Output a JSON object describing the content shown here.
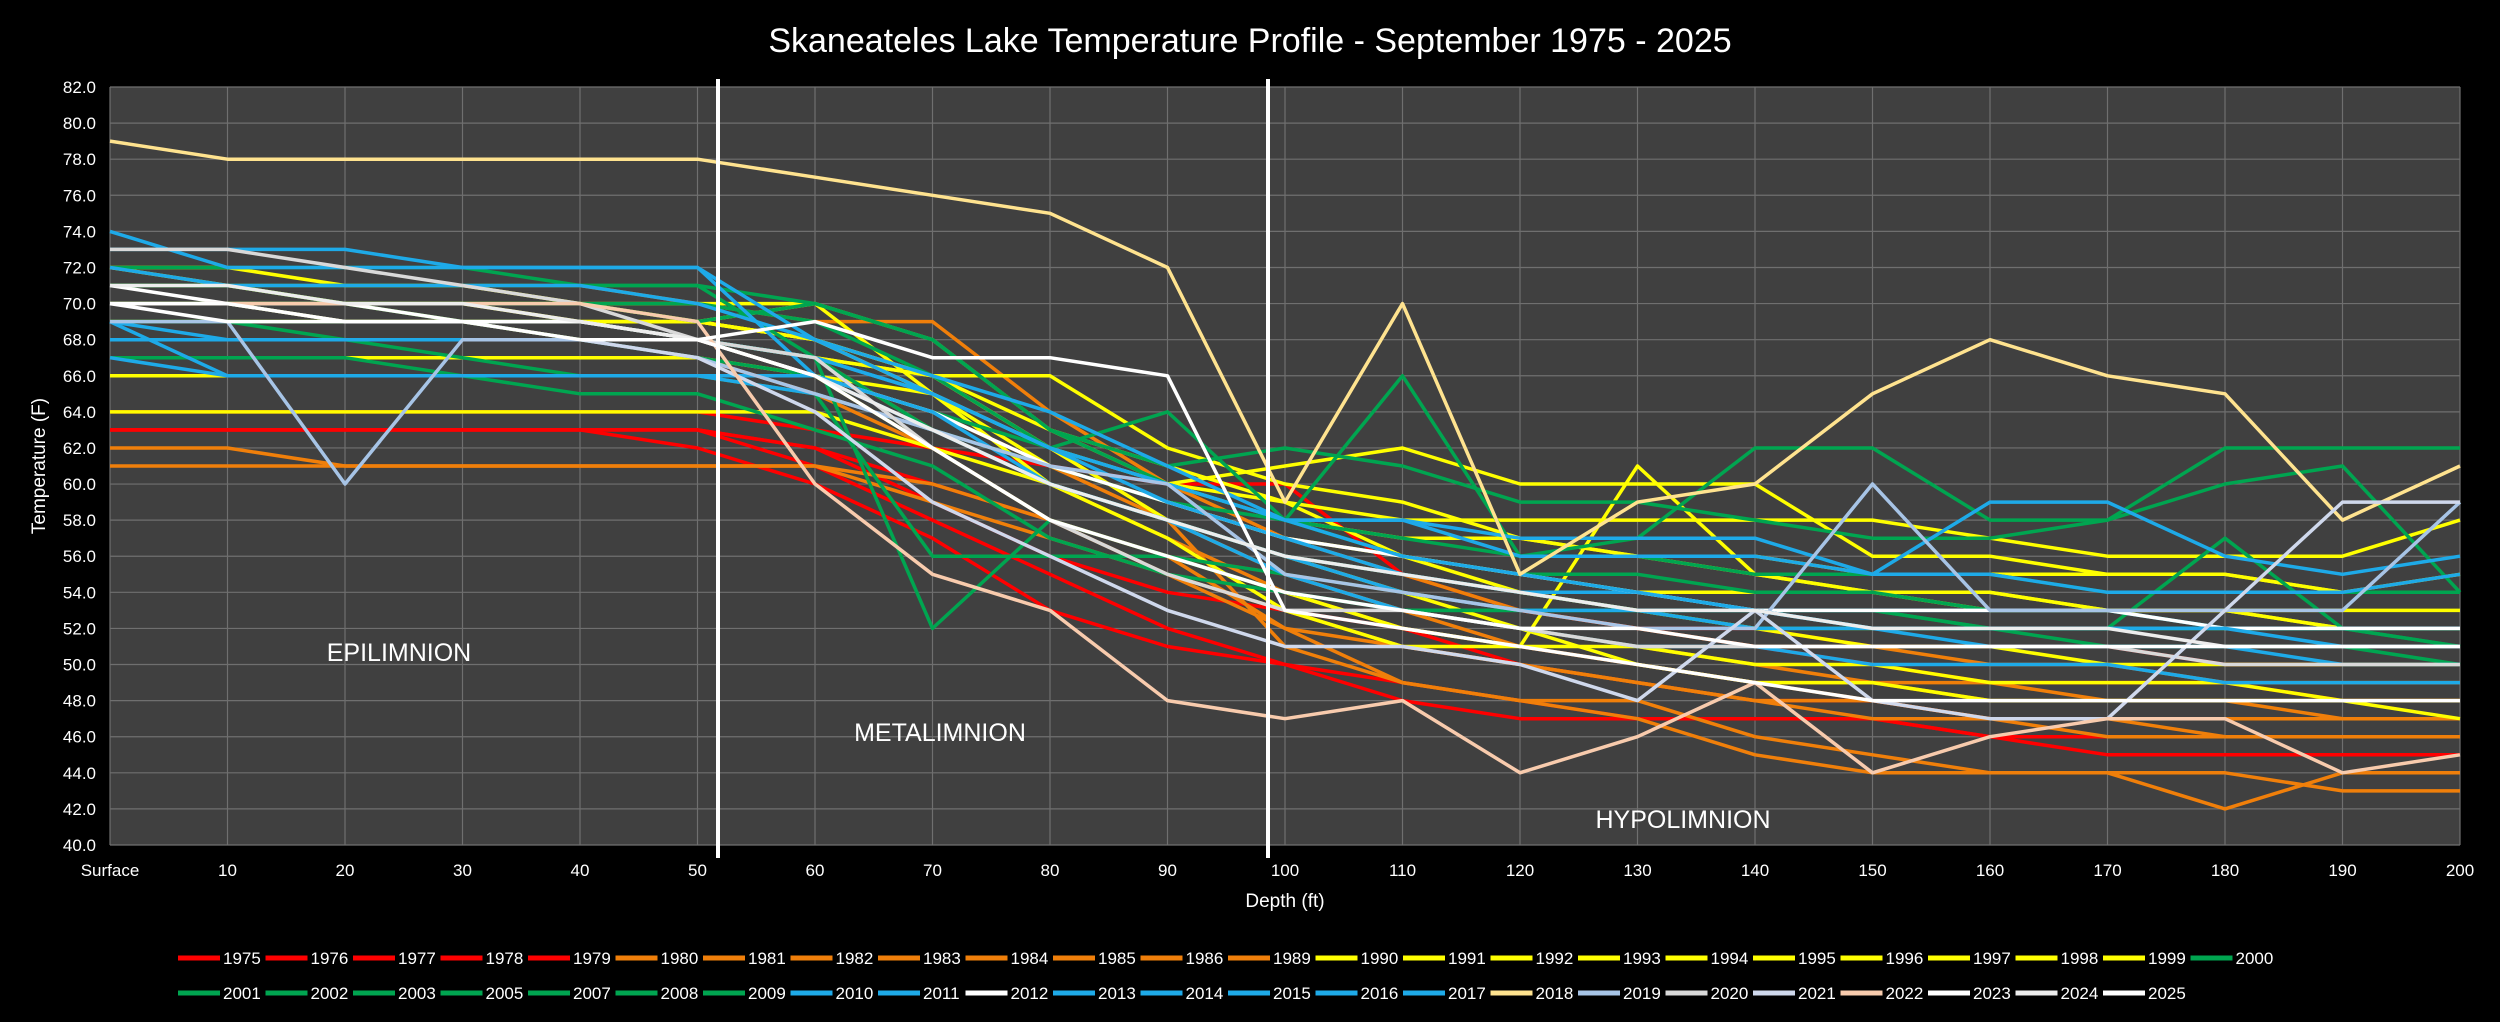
{
  "chart_data": {
    "type": "line",
    "title": "Skaneateles Lake Temperature Profile - September 1975 - 2025",
    "xlabel": "Depth (ft)",
    "ylabel": "Temperature (F)",
    "ylim": [
      40,
      82
    ],
    "x": [
      "Surface",
      "10",
      "20",
      "30",
      "40",
      "50",
      "60",
      "70",
      "80",
      "90",
      "100",
      "110",
      "120",
      "130",
      "140",
      "150",
      "160",
      "170",
      "180",
      "190",
      "200"
    ],
    "y_ticks": [
      "40.0",
      "42.0",
      "44.0",
      "46.0",
      "48.0",
      "50.0",
      "52.0",
      "54.0",
      "56.0",
      "58.0",
      "60.0",
      "62.0",
      "64.0",
      "66.0",
      "68.0",
      "70.0",
      "72.0",
      "74.0",
      "76.0",
      "78.0",
      "80.0",
      "82.0"
    ],
    "grid": true,
    "legend_position": "bottom",
    "zones": [
      {
        "label": "EPILIMNION"
      },
      {
        "label": "METALIMNION"
      },
      {
        "label": "HYPOLIMNION"
      }
    ],
    "series": [
      {
        "name": "1975",
        "color": "#ff0000",
        "values": [
          63,
          63,
          63,
          63,
          63,
          63,
          61,
          58,
          55,
          52,
          50,
          48,
          47,
          47,
          47,
          47,
          46,
          46,
          46,
          46,
          46
        ]
      },
      {
        "name": "1976",
        "color": "#ff0000",
        "values": [
          63,
          63,
          63,
          63,
          63,
          62,
          60,
          57,
          53,
          51,
          50,
          49,
          48,
          47,
          47,
          47,
          46,
          45,
          45,
          45,
          45
        ]
      },
      {
        "name": "1977",
        "color": "#ff0000",
        "values": [
          63,
          63,
          63,
          63,
          63,
          63,
          62,
          59,
          56,
          54,
          53,
          52,
          50,
          49,
          48,
          48,
          47,
          47,
          47,
          47,
          47
        ]
      },
      {
        "name": "1978",
        "color": "#ff0000",
        "values": [
          63,
          63,
          63,
          63,
          63,
          63,
          62,
          60,
          58,
          56,
          55,
          54,
          53,
          52,
          51,
          50,
          49,
          49,
          49,
          48,
          48
        ]
      },
      {
        "name": "1979",
        "color": "#ff0000",
        "values": [
          64,
          64,
          64,
          64,
          64,
          64,
          63,
          62,
          61,
          60,
          60,
          55,
          53,
          52,
          52,
          51,
          51,
          51,
          50,
          50,
          50
        ]
      },
      {
        "name": "1980",
        "color": "#f07f0a",
        "values": [
          62,
          62,
          61,
          61,
          61,
          61,
          61,
          60,
          58,
          56,
          52,
          49,
          48,
          48,
          46,
          45,
          44,
          44,
          44,
          43,
          43
        ]
      },
      {
        "name": "1981",
        "color": "#f07f0a",
        "values": [
          61,
          61,
          61,
          61,
          61,
          61,
          61,
          59,
          57,
          55,
          53,
          51,
          50,
          49,
          48,
          48,
          47,
          47,
          47,
          47,
          47
        ]
      },
      {
        "name": "1982",
        "color": "#f07f0a",
        "values": [
          66,
          66,
          66,
          66,
          66,
          66,
          65,
          63,
          60,
          57,
          54,
          52,
          51,
          50,
          49,
          48,
          47,
          47,
          46,
          46,
          46
        ]
      },
      {
        "name": "1983",
        "color": "#f07f0a",
        "values": [
          69,
          69,
          69,
          69,
          68,
          68,
          66,
          64,
          61,
          58,
          55,
          53,
          52,
          51,
          50,
          49,
          49,
          48,
          48,
          48,
          48
        ]
      },
      {
        "name": "1984",
        "color": "#f07f0a",
        "values": [
          67,
          67,
          67,
          67,
          67,
          67,
          65,
          62,
          58,
          55,
          52,
          51,
          50,
          49,
          48,
          47,
          47,
          46,
          46,
          46,
          46
        ]
      },
      {
        "name": "1985",
        "color": "#f07f0a",
        "values": [
          70,
          70,
          70,
          70,
          70,
          69,
          68,
          65,
          62,
          58,
          55,
          53,
          51,
          50,
          49,
          49,
          48,
          48,
          48,
          47,
          47
        ]
      },
      {
        "name": "1986",
        "color": "#f07f0a",
        "values": [
          71,
          71,
          71,
          71,
          71,
          70,
          69,
          69,
          64,
          60,
          57,
          55,
          53,
          52,
          51,
          51,
          50,
          50,
          49,
          49,
          49
        ]
      },
      {
        "name": "1989",
        "color": "#f07f0a",
        "values": [
          68,
          68,
          68,
          68,
          68,
          68,
          67,
          63,
          60,
          58,
          51,
          49,
          48,
          47,
          45,
          44,
          44,
          44,
          42,
          44,
          44
        ]
      },
      {
        "name": "1990",
        "color": "#ffff00",
        "values": [
          64,
          64,
          64,
          64,
          64,
          64,
          64,
          62,
          60,
          58,
          56,
          55,
          54,
          53,
          52,
          51,
          51,
          50,
          50,
          50,
          50
        ]
      },
      {
        "name": "1991",
        "color": "#ffff00",
        "values": [
          72,
          71,
          70,
          69,
          68,
          68,
          67,
          66,
          66,
          62,
          60,
          59,
          57,
          56,
          55,
          54,
          54,
          53,
          53,
          52,
          52
        ]
      },
      {
        "name": "1992",
        "color": "#ffff00",
        "values": [
          70,
          70,
          69,
          69,
          69,
          69,
          68,
          66,
          62,
          60,
          58,
          57,
          57,
          56,
          56,
          55,
          55,
          55,
          55,
          54,
          54
        ]
      },
      {
        "name": "1993",
        "color": "#ffff00",
        "values": [
          71,
          71,
          70,
          70,
          69,
          69,
          68,
          65,
          61,
          59,
          57,
          56,
          55,
          54,
          54,
          54,
          53,
          53,
          53,
          52,
          52
        ]
      },
      {
        "name": "1994",
        "color": "#ffff00",
        "values": [
          69,
          69,
          69,
          69,
          69,
          69,
          70,
          68,
          63,
          60,
          61,
          62,
          60,
          60,
          60,
          56,
          56,
          55,
          55,
          54,
          55
        ]
      },
      {
        "name": "1995",
        "color": "#ffff00",
        "values": [
          68,
          68,
          68,
          68,
          68,
          68,
          67,
          66,
          62,
          60,
          59,
          58,
          58,
          58,
          58,
          58,
          57,
          56,
          56,
          56,
          58
        ]
      },
      {
        "name": "1996",
        "color": "#ffff00",
        "values": [
          67,
          67,
          67,
          67,
          67,
          67,
          66,
          65,
          62,
          58,
          56,
          54,
          52,
          50,
          49,
          49,
          48,
          48,
          48,
          48,
          48
        ]
      },
      {
        "name": "1997",
        "color": "#ffff00",
        "values": [
          66,
          66,
          66,
          66,
          66,
          66,
          66,
          62,
          58,
          56,
          54,
          52,
          51,
          51,
          50,
          50,
          49,
          49,
          49,
          48,
          47
        ]
      },
      {
        "name": "1998",
        "color": "#ffff00",
        "values": [
          72,
          72,
          71,
          71,
          70,
          69,
          68,
          66,
          63,
          61,
          59,
          56,
          54,
          53,
          52,
          52,
          52,
          52,
          52,
          52,
          52
        ]
      },
      {
        "name": "1999",
        "color": "#ffff00",
        "values": [
          70,
          70,
          70,
          70,
          70,
          70,
          70,
          65,
          60,
          57,
          53,
          51,
          51,
          61,
          55,
          54,
          54,
          53,
          53,
          53,
          53
        ]
      },
      {
        "name": "2000",
        "color": "#00a550",
        "values": [
          70,
          70,
          70,
          70,
          70,
          69,
          70,
          68,
          63,
          60,
          58,
          56,
          55,
          55,
          54,
          54,
          53,
          53,
          52,
          52,
          52
        ]
      },
      {
        "name": "2001",
        "color": "#00a550",
        "values": [
          71,
          71,
          70,
          69,
          68,
          67,
          66,
          64,
          62,
          64,
          58,
          66,
          56,
          57,
          62,
          62,
          58,
          58,
          60,
          61,
          54
        ]
      },
      {
        "name": "2002",
        "color": "#00a550",
        "values": [
          69,
          69,
          69,
          69,
          69,
          68,
          67,
          63,
          61,
          59,
          58,
          56,
          55,
          54,
          53,
          53,
          52,
          52,
          57,
          52,
          51
        ]
      },
      {
        "name": "2003",
        "color": "#00a550",
        "values": [
          72,
          72,
          72,
          72,
          71,
          71,
          67,
          52,
          58,
          56,
          55,
          54,
          53,
          53,
          52,
          52,
          52,
          51,
          51,
          51,
          50
        ]
      },
      {
        "name": "2005",
        "color": "#00a550",
        "values": [
          70,
          70,
          70,
          70,
          70,
          70,
          69,
          66,
          62,
          60,
          58,
          57,
          56,
          56,
          55,
          55,
          55,
          54,
          54,
          54,
          54
        ]
      },
      {
        "name": "2007",
        "color": "#00a550",
        "values": [
          69,
          69,
          68,
          67,
          66,
          66,
          65,
          56,
          56,
          56,
          54,
          53,
          53,
          53,
          53,
          53,
          52,
          52,
          52,
          52,
          51
        ]
      },
      {
        "name": "2008",
        "color": "#00a550",
        "values": [
          67,
          67,
          67,
          66,
          65,
          65,
          63,
          61,
          57,
          55,
          54,
          53,
          53,
          53,
          53,
          52,
          52,
          52,
          52,
          52,
          52
        ]
      },
      {
        "name": "2009",
        "color": "#00a550",
        "values": [
          71,
          71,
          71,
          71,
          71,
          71,
          70,
          68,
          63,
          61,
          62,
          61,
          59,
          59,
          58,
          57,
          57,
          58,
          62,
          62,
          62
        ]
      },
      {
        "name": "2010",
        "color": "#1eaae8",
        "values": [
          74,
          72,
          72,
          72,
          72,
          72,
          66,
          63,
          60,
          58,
          56,
          55,
          54,
          54,
          53,
          53,
          53,
          53,
          52,
          52,
          52
        ]
      },
      {
        "name": "2011",
        "color": "#1eaae8",
        "values": [
          69,
          66,
          66,
          66,
          66,
          66,
          65,
          63,
          60,
          58,
          56,
          54,
          53,
          53,
          52,
          52,
          52,
          52,
          52,
          52,
          52
        ]
      },
      {
        "name": "2012",
        "color": "#ffffff",
        "values": [
          71,
          70,
          70,
          69,
          69,
          68,
          66,
          64,
          61,
          59,
          57,
          56,
          55,
          54,
          53,
          53,
          53,
          53,
          52,
          52,
          52
        ]
      },
      {
        "name": "2013",
        "color": "#1eaae8",
        "values": [
          68,
          68,
          68,
          68,
          68,
          68,
          67,
          65,
          62,
          59,
          57,
          55,
          54,
          53,
          53,
          52,
          52,
          52,
          52,
          51,
          51
        ]
      },
      {
        "name": "2014",
        "color": "#1eaae8",
        "values": [
          72,
          71,
          71,
          71,
          71,
          70,
          68,
          66,
          64,
          61,
          58,
          58,
          56,
          56,
          56,
          55,
          59,
          59,
          56,
          55,
          56
        ]
      },
      {
        "name": "2015",
        "color": "#1eaae8",
        "values": [
          73,
          73,
          73,
          72,
          72,
          72,
          68,
          65,
          62,
          60,
          58,
          56,
          55,
          54,
          53,
          52,
          51,
          51,
          51,
          50,
          50
        ]
      },
      {
        "name": "2016",
        "color": "#1eaae8",
        "values": [
          69,
          68,
          68,
          68,
          68,
          68,
          67,
          65,
          62,
          60,
          58,
          58,
          57,
          57,
          57,
          55,
          55,
          54,
          54,
          54,
          55
        ]
      },
      {
        "name": "2017",
        "color": "#1eaae8",
        "values": [
          67,
          66,
          66,
          66,
          66,
          66,
          66,
          64,
          60,
          58,
          55,
          53,
          52,
          51,
          51,
          50,
          50,
          50,
          49,
          49,
          49
        ]
      },
      {
        "name": "2018",
        "color": "#ffe38f",
        "values": [
          79,
          78,
          78,
          78,
          78,
          78,
          77,
          76,
          75,
          72,
          59,
          70,
          55,
          59,
          60,
          65,
          68,
          66,
          65,
          58,
          61
        ]
      },
      {
        "name": "2019",
        "color": "#a7c4e6",
        "values": [
          69,
          69,
          60,
          68,
          68,
          67,
          65,
          63,
          61,
          60,
          55,
          54,
          53,
          52,
          52,
          60,
          53,
          53,
          53,
          53,
          59
        ]
      },
      {
        "name": "2020",
        "color": "#d9d9d9",
        "values": [
          73,
          73,
          72,
          71,
          70,
          68,
          67,
          62,
          58,
          55,
          53,
          53,
          52,
          51,
          51,
          51,
          51,
          51,
          50,
          50,
          50
        ]
      },
      {
        "name": "2021",
        "color": "#cfd8ec",
        "values": [
          70,
          70,
          69,
          69,
          68,
          67,
          64,
          59,
          56,
          53,
          51,
          51,
          50,
          48,
          53,
          48,
          47,
          47,
          53,
          59,
          59
        ]
      },
      {
        "name": "2022",
        "color": "#f8cbad",
        "values": [
          70,
          70,
          70,
          70,
          70,
          69,
          60,
          55,
          53,
          48,
          47,
          48,
          44,
          46,
          49,
          44,
          46,
          47,
          47,
          44,
          45
        ]
      },
      {
        "name": "2023",
        "color": "#ffffff",
        "values": [
          70,
          69,
          69,
          69,
          69,
          68,
          69,
          67,
          67,
          66,
          53,
          52,
          51,
          50,
          49,
          48,
          48,
          48,
          48,
          48,
          48
        ]
      },
      {
        "name": "2024",
        "color": "#ededed",
        "values": [
          71,
          71,
          70,
          70,
          69,
          68,
          66,
          63,
          60,
          58,
          56,
          55,
          54,
          53,
          53,
          52,
          52,
          52,
          51,
          51,
          51
        ]
      },
      {
        "name": "2025",
        "color": "#ffffff",
        "values": [
          70,
          70,
          69,
          69,
          68,
          68,
          66,
          62,
          58,
          56,
          54,
          53,
          52,
          52,
          51,
          51,
          51,
          51,
          51,
          51,
          51
        ]
      }
    ]
  }
}
